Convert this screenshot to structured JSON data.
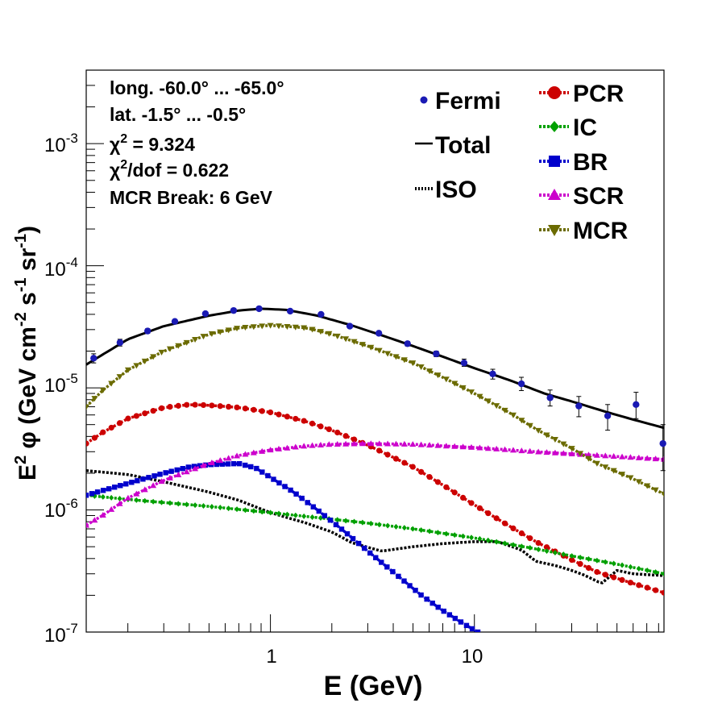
{
  "chart_data": {
    "type": "line",
    "xscale": "log",
    "yscale": "log",
    "xlim": [
      0.125,
      85
    ],
    "ylim": [
      1e-07,
      0.004
    ],
    "xlabel": "E (GeV)",
    "ylabel": {
      "pre": "E",
      "sq": "2",
      "phi": "  φ (GeV cm",
      "m2": "-2",
      "s": " s",
      "m1": "-1",
      "sr": " sr",
      "m1b": "-1",
      "close": ")"
    },
    "x_major_ticks": [
      {
        "value": 1,
        "label": "1"
      },
      {
        "value": 10,
        "label": "10"
      }
    ],
    "y_major_ticks": [
      {
        "value": 1e-07,
        "base": "10",
        "exp": "-7"
      },
      {
        "value": 1e-06,
        "base": "10",
        "exp": "-6"
      },
      {
        "value": 1e-05,
        "base": "10",
        "exp": "-5"
      },
      {
        "value": 0.0001,
        "base": "10",
        "exp": "-4"
      },
      {
        "value": 0.001,
        "base": "10",
        "exp": "-3"
      }
    ],
    "info": {
      "longitude": "long. -60.0° ... -65.0°",
      "latitude": "lat. -1.5° ... -0.5°",
      "chi2_sym": "χ",
      "chi2_sup": "2",
      "chi2_val": " = 9.324",
      "chi2dof_sym": "χ",
      "chi2dof_sup": "2",
      "chi2dof_val": "/dof = 0.622",
      "mcr_break": "MCR Break:  6 GeV"
    },
    "fermi": {
      "name": "Fermi",
      "color": "#1a1ab4",
      "points": [
        {
          "x": 0.136,
          "y": 1.75e-05,
          "lo": 1.6e-05,
          "hi": 1.9e-05
        },
        {
          "x": 0.183,
          "y": 2.35e-05,
          "lo": 2.2e-05,
          "hi": 2.5e-05
        },
        {
          "x": 0.25,
          "y": 2.92e-05,
          "lo": 2.8e-05,
          "hi": 3.05e-05
        },
        {
          "x": 0.34,
          "y": 3.5e-05,
          "lo": 3.4e-05,
          "hi": 3.6e-05
        },
        {
          "x": 0.48,
          "y": 4.05e-05,
          "lo": 3.95e-05,
          "hi": 4.15e-05
        },
        {
          "x": 0.66,
          "y": 4.3e-05,
          "lo": 4.2e-05,
          "hi": 4.4e-05
        },
        {
          "x": 0.88,
          "y": 4.45e-05,
          "lo": 4.35e-05,
          "hi": 4.55e-05
        },
        {
          "x": 1.25,
          "y": 4.25e-05,
          "lo": 4.15e-05,
          "hi": 4.35e-05
        },
        {
          "x": 1.77,
          "y": 4e-05,
          "lo": 3.9e-05,
          "hi": 4.1e-05
        },
        {
          "x": 2.45,
          "y": 3.2e-05,
          "lo": 3.1e-05,
          "hi": 3.3e-05
        },
        {
          "x": 3.4,
          "y": 2.8e-05,
          "lo": 2.7e-05,
          "hi": 2.9e-05
        },
        {
          "x": 4.7,
          "y": 2.3e-05,
          "lo": 2.2e-05,
          "hi": 2.4e-05
        },
        {
          "x": 6.5,
          "y": 1.9e-05,
          "lo": 1.8e-05,
          "hi": 2e-05
        },
        {
          "x": 8.9,
          "y": 1.6e-05,
          "lo": 1.5e-05,
          "hi": 1.72e-05
        },
        {
          "x": 12.3,
          "y": 1.3e-05,
          "lo": 1.18e-05,
          "hi": 1.42e-05
        },
        {
          "x": 17.0,
          "y": 1.08e-05,
          "lo": 9.5e-06,
          "hi": 1.22e-05
        },
        {
          "x": 23.5,
          "y": 8.3e-06,
          "lo": 7.1e-06,
          "hi": 9.6e-06
        },
        {
          "x": 32.5,
          "y": 7.1e-06,
          "lo": 5.8e-06,
          "hi": 8.5e-06
        },
        {
          "x": 45.0,
          "y": 5.9e-06,
          "lo": 4.5e-06,
          "hi": 7.3e-06
        },
        {
          "x": 62.0,
          "y": 7.3e-06,
          "lo": 5.6e-06,
          "hi": 9.2e-06
        },
        {
          "x": 84.0,
          "y": 3.5e-06,
          "lo": 2.1e-06,
          "hi": 5e-06
        }
      ]
    },
    "total": {
      "name": "Total",
      "color": "#000000",
      "x": [
        0.125,
        0.2,
        0.3,
        0.5,
        0.7,
        0.9,
        1.2,
        1.7,
        2.5,
        3.5,
        5,
        7,
        10,
        15,
        22,
        32,
        45,
        60,
        85
      ],
      "y": [
        1.55e-05,
        2.5e-05,
        3.2e-05,
        3.9e-05,
        4.3e-05,
        4.45e-05,
        4.35e-05,
        3.9e-05,
        3.25e-05,
        2.7e-05,
        2.2e-05,
        1.8e-05,
        1.45e-05,
        1.15e-05,
        9e-06,
        7.5e-06,
        6.3e-06,
        5.5e-06,
        4.7e-06
      ]
    },
    "iso": {
      "name": "ISO",
      "color": "#000000",
      "x": [
        0.125,
        0.2,
        0.3,
        0.5,
        0.7,
        1,
        1.5,
        2,
        2.5,
        3.5,
        5,
        7,
        10,
        13,
        17,
        20,
        25,
        30,
        35,
        42,
        50,
        60,
        85
      ],
      "y": [
        2.1e-06,
        1.95e-06,
        1.7e-06,
        1.4e-06,
        1.2e-06,
        9.5e-07,
        7.8e-07,
        6.6e-07,
        5.4e-07,
        4.6e-07,
        5e-07,
        5.3e-07,
        5.5e-07,
        5.5e-07,
        4.7e-07,
        3.8e-07,
        3.5e-07,
        3.2e-07,
        2.9e-07,
        2.5e-07,
        3.2e-07,
        3e-07,
        2.9e-07
      ]
    },
    "series": [
      {
        "name": "PCR",
        "color": "#cc0000",
        "marker": "circle",
        "x": [
          0.125,
          0.15,
          0.2,
          0.3,
          0.4,
          0.5,
          0.7,
          1,
          1.5,
          2,
          3,
          5,
          7,
          10,
          15,
          20,
          30,
          40,
          60,
          85
        ],
        "y": [
          3.5e-06,
          4.3e-06,
          5.6e-06,
          6.9e-06,
          7.3e-06,
          7.2e-06,
          6.9e-06,
          6.3e-06,
          5.3e-06,
          4.5e-06,
          3.4e-06,
          2.25e-06,
          1.6e-06,
          1.1e-06,
          7.3e-07,
          5.5e-07,
          3.9e-07,
          3.1e-07,
          2.5e-07,
          2.1e-07
        ]
      },
      {
        "name": "IC",
        "color": "#00a000",
        "marker": "diamond",
        "x": [
          0.125,
          0.2,
          0.3,
          0.5,
          1,
          2,
          3,
          5,
          10,
          20,
          30,
          50,
          85
        ],
        "y": [
          1.32e-06,
          1.22e-06,
          1.15e-06,
          1.07e-06,
          9.5e-07,
          8.4e-07,
          7.8e-07,
          7e-07,
          5.9e-07,
          4.8e-07,
          4.2e-07,
          3.6e-07,
          3e-07
        ]
      },
      {
        "name": "BR",
        "color": "#0000cc",
        "marker": "square",
        "x": [
          0.125,
          0.2,
          0.3,
          0.4,
          0.5,
          0.7,
          0.85,
          1.0,
          1.3,
          1.7,
          2.3,
          3.0,
          4.0,
          5.5,
          7.0,
          9.0,
          10.4
        ],
        "y": [
          1.32e-06,
          1.65e-06,
          2e-06,
          2.25e-06,
          2.35e-06,
          2.4e-06,
          2.2e-06,
          1.85e-06,
          1.4e-06,
          1e-06,
          6.7e-07,
          4.6e-07,
          3.1e-07,
          2e-07,
          1.5e-07,
          1.15e-07,
          1e-07
        ]
      },
      {
        "name": "SCR",
        "color": "#cc00cc",
        "marker": "triangle-up",
        "x": [
          0.125,
          0.15,
          0.2,
          0.3,
          0.5,
          0.7,
          1,
          1.5,
          2,
          3,
          5,
          10,
          20,
          40,
          85
        ],
        "y": [
          7.5e-07,
          9e-07,
          1.25e-06,
          1.75e-06,
          2.4e-06,
          2.8e-06,
          3.1e-06,
          3.35e-06,
          3.45e-06,
          3.5e-06,
          3.45e-06,
          3.25e-06,
          3e-06,
          2.8e-06,
          2.6e-06
        ]
      },
      {
        "name": "MCR",
        "color": "#6b6b00",
        "marker": "triangle-down",
        "x": [
          0.125,
          0.15,
          0.2,
          0.3,
          0.5,
          0.7,
          1,
          1.5,
          2,
          3,
          5,
          7,
          10,
          15,
          20,
          30,
          40,
          60,
          85
        ],
        "y": [
          7e-06,
          9.5e-06,
          1.4e-05,
          2e-05,
          2.75e-05,
          3.1e-05,
          3.25e-05,
          3.1e-05,
          2.75e-05,
          2.2e-05,
          1.6e-05,
          1.22e-05,
          9e-06,
          6.2e-06,
          4.6e-06,
          3.2e-06,
          2.4e-06,
          1.8e-06,
          1.35e-06
        ]
      }
    ]
  }
}
